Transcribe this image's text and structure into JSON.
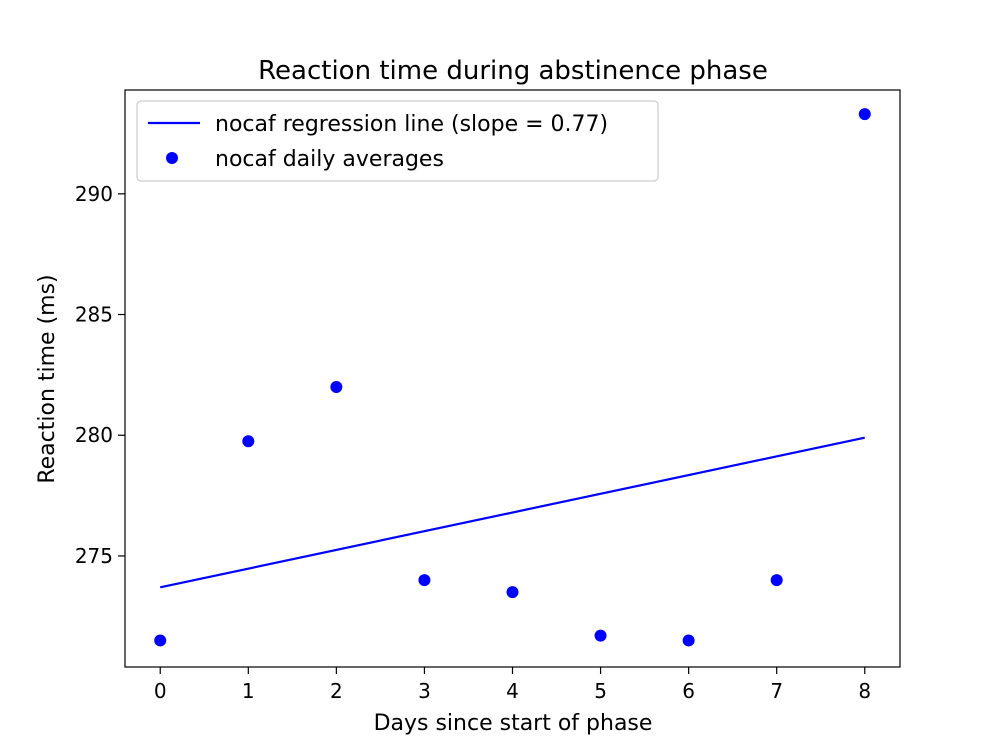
{
  "chart_data": {
    "type": "scatter",
    "title": "Reaction time during abstinence phase",
    "xlabel": "Days since start of phase",
    "ylabel": "Reaction time (ms)",
    "xlim": [
      -0.4,
      8.4
    ],
    "ylim": [
      270.4,
      294.3
    ],
    "xticks": [
      0,
      1,
      2,
      3,
      4,
      5,
      6,
      7,
      8
    ],
    "yticks": [
      275,
      280,
      285,
      290
    ],
    "grid": false,
    "legend_position": "upper-left",
    "series": [
      {
        "name": "nocaf regression line (slope = 0.77)",
        "kind": "line",
        "color": "#0000ff",
        "x": [
          0,
          8
        ],
        "y": [
          273.7,
          279.9
        ]
      },
      {
        "name": "nocaf daily averages",
        "kind": "scatter",
        "color": "#0000ff",
        "x": [
          0,
          1,
          2,
          3,
          4,
          5,
          6,
          7,
          8
        ],
        "y": [
          271.5,
          279.75,
          282.0,
          274.0,
          273.5,
          271.7,
          271.5,
          274.0,
          293.3
        ]
      }
    ]
  }
}
